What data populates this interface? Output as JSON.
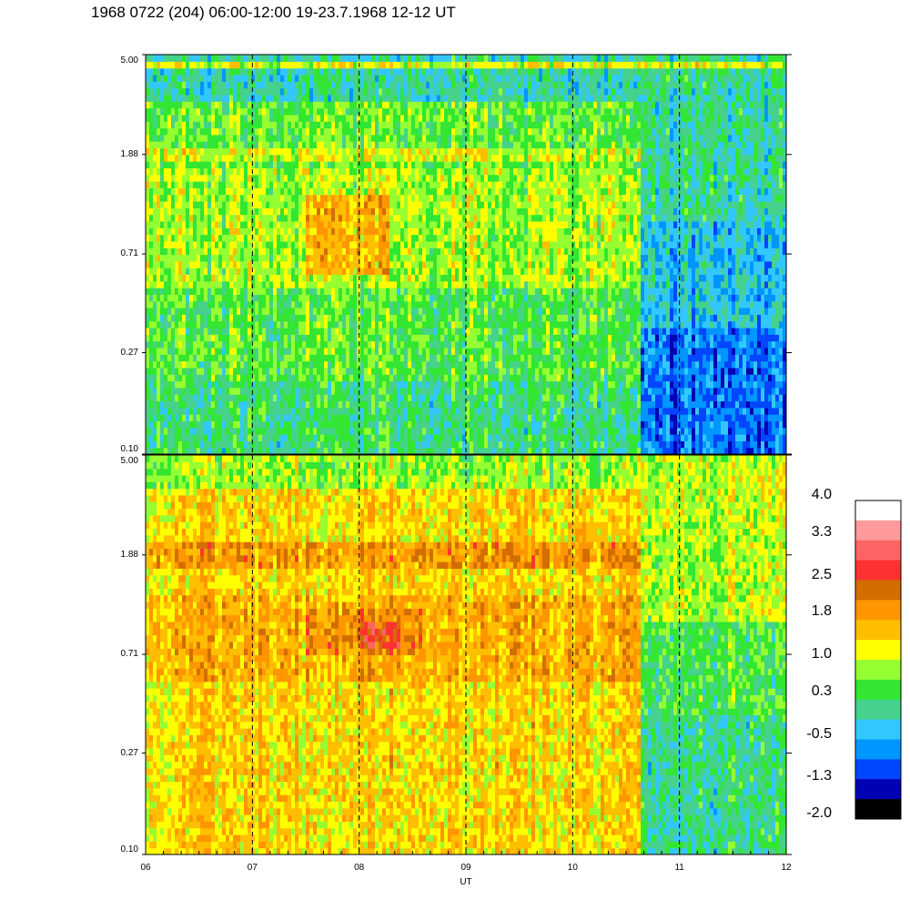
{
  "title": "1968 0722 (204) 06:00-12:00 19-23.7.1968  12-12 UT",
  "chart_data": [
    {
      "type": "heatmap",
      "panel": "top",
      "x_range": [
        6,
        12
      ],
      "y_scale": "log",
      "y_range": [
        0.1,
        5.0
      ],
      "y_ticks": [
        "5.00",
        "1.88",
        "0.71",
        "0.27",
        "0.10"
      ],
      "y_tick_values": [
        5.0,
        1.88,
        0.71,
        0.27,
        0.1
      ],
      "vertical_dashed_lines_at": [
        7,
        8,
        9,
        10,
        11
      ],
      "column_regions": [
        {
          "x_from": 6,
          "x_to": 10.65,
          "rows": [
            {
              "y_from": 3.2,
              "y_to": 5.0,
              "value": 0.0
            },
            {
              "y_from": 1.6,
              "y_to": 3.2,
              "value": 0.6
            },
            {
              "y_from": 0.5,
              "y_to": 1.6,
              "value": 0.9
            },
            {
              "y_from": 0.2,
              "y_to": 0.5,
              "value": 0.5
            },
            {
              "y_from": 0.1,
              "y_to": 0.2,
              "value": 0.2
            }
          ]
        },
        {
          "x_from": 10.65,
          "x_to": 12,
          "rows": [
            {
              "y_from": 1.0,
              "y_to": 5.0,
              "value": 0.0
            },
            {
              "y_from": 0.35,
              "y_to": 1.0,
              "value": -0.4
            },
            {
              "y_from": 0.1,
              "y_to": 0.35,
              "value": -0.9
            }
          ]
        }
      ],
      "features": [
        {
          "x_from": 7.5,
          "x_to": 8.3,
          "y_from": 0.6,
          "y_to": 1.3,
          "value": 1.6
        },
        {
          "x_from": 6,
          "x_to": 10.65,
          "y_from": 1.8,
          "y_to": 2.0,
          "value": 1.1
        },
        {
          "x_from": 6,
          "x_to": 12,
          "y_from": 4.5,
          "y_to": 4.7,
          "value": 1.1
        }
      ]
    },
    {
      "type": "heatmap",
      "panel": "bottom",
      "x_range": [
        6,
        12
      ],
      "x_ticks": [
        "06",
        "07",
        "08",
        "09",
        "10",
        "11",
        "12"
      ],
      "x_tick_values": [
        6,
        7,
        8,
        9,
        10,
        11,
        12
      ],
      "xlabel": "UT",
      "y_scale": "log",
      "y_range": [
        0.1,
        5.0
      ],
      "y_ticks": [
        "5.00",
        "1.88",
        "0.71",
        "0.27",
        "0.10"
      ],
      "y_tick_values": [
        5.0,
        1.88,
        0.71,
        0.27,
        0.1
      ],
      "vertical_dashed_lines_at": [
        7,
        8,
        9,
        10,
        11
      ],
      "column_regions": [
        {
          "x_from": 6,
          "x_to": 10.65,
          "rows": [
            {
              "y_from": 3.5,
              "y_to": 5.0,
              "value": 0.8
            },
            {
              "y_from": 1.3,
              "y_to": 3.5,
              "value": 1.4
            },
            {
              "y_from": 0.55,
              "y_to": 1.3,
              "value": 1.7
            },
            {
              "y_from": 0.1,
              "y_to": 0.55,
              "value": 1.4
            }
          ]
        },
        {
          "x_from": 10.65,
          "x_to": 12,
          "rows": [
            {
              "y_from": 2.5,
              "y_to": 5.0,
              "value": 1.0
            },
            {
              "y_from": 1.0,
              "y_to": 2.5,
              "value": 0.9
            },
            {
              "y_from": 0.4,
              "y_to": 1.0,
              "value": 0.4
            },
            {
              "y_from": 0.1,
              "y_to": 0.4,
              "value": 0.1
            }
          ]
        }
      ],
      "features": [
        {
          "x_from": 6,
          "x_to": 10.65,
          "y_from": 1.7,
          "y_to": 2.1,
          "value": 1.9
        },
        {
          "x_from": 7.5,
          "x_to": 8.6,
          "y_from": 0.7,
          "y_to": 1.1,
          "value": 2.0
        },
        {
          "x_from": 8.0,
          "x_to": 8.4,
          "y_from": 0.75,
          "y_to": 1.0,
          "value": 2.6
        }
      ]
    }
  ],
  "colorbar": {
    "labels": [
      "4.0",
      "3.3",
      "2.5",
      "1.8",
      "1.0",
      "0.3",
      "-0.5",
      "-1.3",
      "-2.0"
    ],
    "range": [
      -2.0,
      4.0
    ],
    "colors": [
      "#ffffff",
      "#ff9a9a",
      "#ff6464",
      "#ff3232",
      "#d26e00",
      "#ff9600",
      "#ffbe00",
      "#ffff00",
      "#96ff32",
      "#32e632",
      "#46d28c",
      "#32c8ff",
      "#0096ff",
      "#0046ff",
      "#0000b4",
      "#000000"
    ]
  }
}
